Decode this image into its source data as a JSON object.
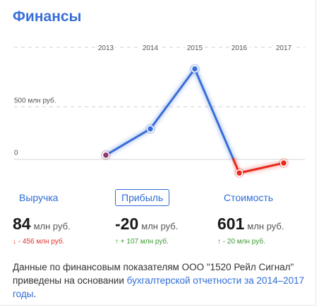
{
  "title": "Финансы",
  "chart_data": {
    "type": "line",
    "x": [
      "2013",
      "2014",
      "2015",
      "2016",
      "2017"
    ],
    "y_ticks": [
      {
        "value": 0,
        "label": "0"
      },
      {
        "value": 500,
        "label": "500 млн руб."
      }
    ],
    "series": [
      {
        "values": [
          40,
          290,
          860,
          -130,
          -35
        ]
      }
    ],
    "ylim": [
      -230,
      1180
    ],
    "colors": {
      "positive": "#3a6fd8",
      "negative": "#e8291c",
      "start_point": "#8b3a6b"
    }
  },
  "metrics": [
    {
      "label": "Выручка",
      "value": "84",
      "unit": "млн руб.",
      "delta": "↓ - 456 млн руб.",
      "delta_sign": "neg",
      "active": false
    },
    {
      "label": "Прибыль",
      "value": "-20",
      "unit": "млн руб.",
      "delta": "↑ + 107 млн руб.",
      "delta_sign": "pos",
      "active": true
    },
    {
      "label": "Стоимость",
      "value": "601",
      "unit": "млн руб.",
      "delta": "↑ - 20 млн руб.",
      "delta_sign": "pos",
      "active": false
    }
  ],
  "footer": {
    "text": "Данные по финансовым показателям ООО \"1520 Рейл Сигнал\" приведены на основании ",
    "link": "бухгалтерской отчетности за 2014–2017 годы",
    "end": "."
  }
}
